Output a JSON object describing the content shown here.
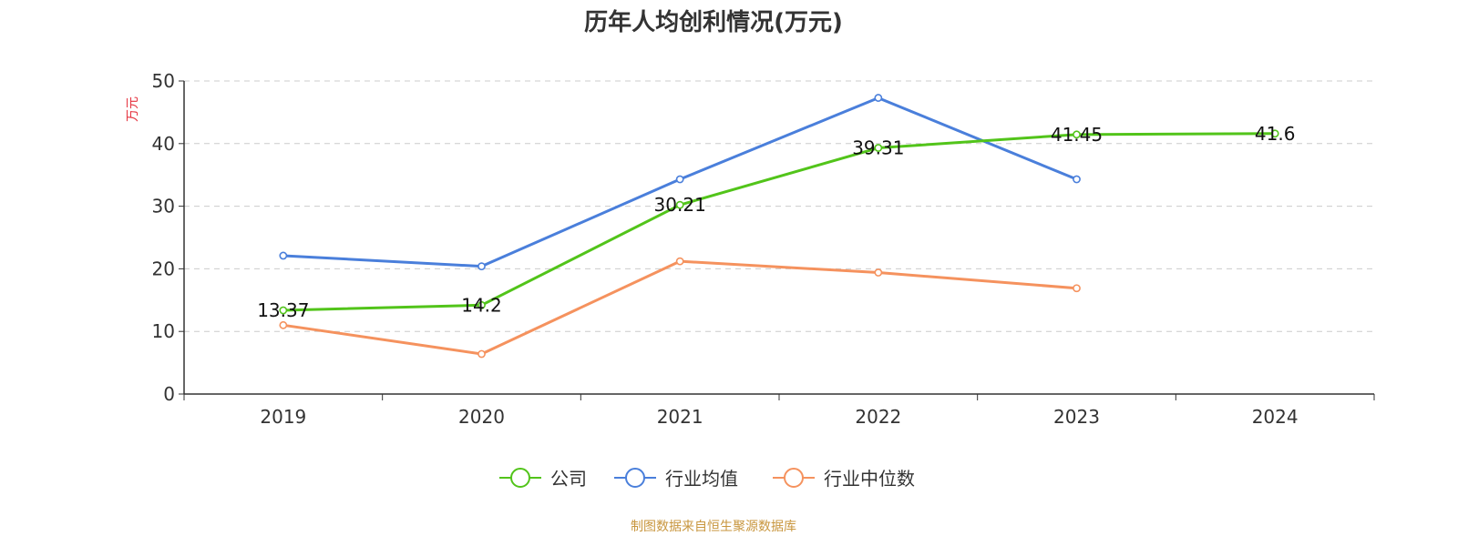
{
  "chart_data": {
    "type": "line",
    "title": "历年人均创利情况(万元)",
    "ylabel": "万元",
    "xlabel": "",
    "categories": [
      "2019",
      "2020",
      "2021",
      "2022",
      "2023",
      "2024"
    ],
    "ylim": [
      0,
      50
    ],
    "yticks": [
      0,
      10,
      20,
      30,
      40,
      50
    ],
    "grid": true,
    "legend_position": "bottom",
    "series": [
      {
        "name": "公司",
        "color": "#52c41a",
        "values": [
          13.37,
          14.2,
          30.21,
          39.31,
          41.45,
          41.6
        ],
        "labels": [
          "13.37",
          "14.2",
          "30.21",
          "39.31",
          "41.45",
          "41.6"
        ]
      },
      {
        "name": "行业均值",
        "color": "#4a7fdb",
        "values": [
          22.1,
          20.4,
          34.3,
          47.3,
          34.3,
          null
        ]
      },
      {
        "name": "行业中位数",
        "color": "#f5925e",
        "values": [
          11.0,
          6.4,
          21.2,
          19.4,
          16.9,
          null
        ]
      }
    ]
  },
  "footer": {
    "source": "制图数据来自恒生聚源数据库"
  }
}
